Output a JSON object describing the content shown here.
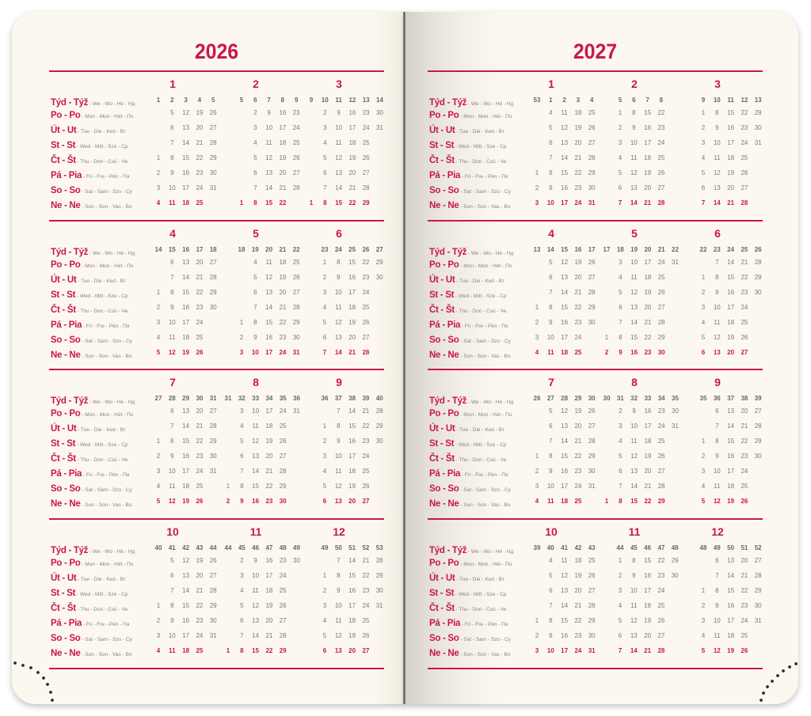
{
  "colors": {
    "accent": "#c8164f",
    "text": "#7d7873",
    "page": "#fcf8ef"
  },
  "row_labels": [
    {
      "main": "Týd - Týž",
      "sub": " - We - Wo - Hé - Нд"
    },
    {
      "main": "Po - Po",
      "sub": " - Mon - Mon - Hét - По"
    },
    {
      "main": "Út - Ut",
      "sub": " - Tue - Die - Ked - Вт"
    },
    {
      "main": "St - St",
      "sub": " - Wed - Mitt - Sze - Ср"
    },
    {
      "main": "Čt - Št",
      "sub": " - Thu - Don - Csü - Че"
    },
    {
      "main": "Pá - Pia",
      "sub": " - Fri - Fre - Pén - Пя"
    },
    {
      "main": "So - So",
      "sub": " - Sat - Sam - Szo - Су"
    },
    {
      "main": "Ne - Ne",
      "sub": " - Sun - Son - Vas - Во"
    }
  ],
  "pages": [
    {
      "year": "2026",
      "quarters": [
        [
          {
            "number": "1",
            "weeks": "1,2,3,4,5",
            "days": [
              ",5,12,19,26",
              ",6,13,20,27",
              ",7,14,21,28",
              "1,8,15,22,29",
              "2,9,16,23,30",
              "3,10,17,24,31",
              "4,11,18,25,"
            ]
          },
          {
            "number": "2",
            "weeks": "5,6,7,8,9",
            "days": [
              ",2,9,16,23",
              ",3,10,17,24",
              ",4,11,18,25",
              ",5,12,19,26",
              ",6,13,20,27",
              ",7,14,21,28",
              "1,8,15,22,"
            ]
          },
          {
            "number": "3",
            "weeks": "9,10,11,12,13,14",
            "days": [
              ",2,9,16,23,30",
              ",3,10,17,24,31",
              ",4,11,18,25,",
              ",5,12,19,26,",
              ",6,13,20,27,",
              ",7,14,21,28,",
              "1,8,15,22,29,"
            ]
          }
        ],
        [
          {
            "number": "4",
            "weeks": "14,15,16,17,18",
            "days": [
              ",6,13,20,27",
              ",7,14,21,28",
              "1,8,15,22,29",
              "2,9,16,23,30",
              "3,10,17,24,",
              "4,11,18,25,",
              "5,12,19,26,"
            ]
          },
          {
            "number": "5",
            "weeks": "18,19,20,21,22",
            "days": [
              ",4,11,18,25",
              ",5,12,19,26",
              ",6,13,20,27",
              ",7,14,21,28",
              "1,8,15,22,29",
              "2,9,16,23,30",
              "3,10,17,24,31"
            ]
          },
          {
            "number": "6",
            "weeks": "23,24,25,26,27",
            "days": [
              "1,8,15,22,29",
              "2,9,16,23,30",
              "3,10,17,24,",
              "4,11,18,25,",
              "5,12,19,26,",
              "6,13,20,27,",
              "7,14,21,28,"
            ]
          }
        ],
        [
          {
            "number": "7",
            "weeks": "27,28,29,30,31",
            "days": [
              ",6,13,20,27",
              ",7,14,21,28",
              "1,8,15,22,29",
              "2,9,16,23,30",
              "3,10,17,24,31",
              "4,11,18,25,",
              "5,12,19,26,"
            ]
          },
          {
            "number": "8",
            "weeks": "31,32,33,34,35,36",
            "days": [
              ",3,10,17,24,31",
              ",4,11,18,25,",
              ",5,12,19,26,",
              ",6,13,20,27,",
              ",7,14,21,28,",
              "1,8,15,22,29,",
              "2,9,16,23,30,"
            ]
          },
          {
            "number": "9",
            "weeks": "36,37,38,39,40",
            "days": [
              ",7,14,21,28",
              "1,8,15,22,29",
              "2,9,16,23,30",
              "3,10,17,24,",
              "4,11,18,25,",
              "5,12,19,26,",
              "6,13,20,27,"
            ]
          }
        ],
        [
          {
            "number": "10",
            "weeks": "40,41,42,43,44",
            "days": [
              ",5,12,19,26",
              ",6,13,20,27",
              ",7,14,21,28",
              "1,8,15,22,29",
              "2,9,16,23,30",
              "3,10,17,24,31",
              "4,11,18,25,"
            ]
          },
          {
            "number": "11",
            "weeks": "44,45,46,47,48,49",
            "days": [
              ",2,9,16,23,30",
              ",3,10,17,24,",
              ",4,11,18,25,",
              ",5,12,19,26,",
              ",6,13,20,27,",
              ",7,14,21,28,",
              "1,8,15,22,29,"
            ]
          },
          {
            "number": "12",
            "weeks": "49,50,51,52,53",
            "days": [
              ",7,14,21,28",
              "1,8,15,22,29",
              "2,9,16,23,30",
              "3,10,17,24,31",
              "4,11,18,25,",
              "5,12,19,26,",
              "6,13,20,27,"
            ]
          }
        ]
      ]
    },
    {
      "year": "2027",
      "quarters": [
        [
          {
            "number": "1",
            "weeks": "53,1,2,3,4",
            "days": [
              ",4,11,18,25",
              ",5,12,19,26",
              ",6,13,20,27",
              ",7,14,21,28",
              "1,8,15,22,29",
              "2,9,16,23,30",
              "3,10,17,24,31"
            ]
          },
          {
            "number": "2",
            "weeks": "5,6,7,8",
            "days": [
              "1,8,15,22",
              "2,9,16,23",
              "3,10,17,24",
              "4,11,18,25",
              "5,12,19,26",
              "6,13,20,27",
              "7,14,21,28"
            ]
          },
          {
            "number": "3",
            "weeks": "9,10,11,12,13",
            "days": [
              "1,8,15,22,29",
              "2,9,16,23,30",
              "3,10,17,24,31",
              "4,11,18,25,",
              "5,12,19,26,",
              "6,13,20,27,",
              "7,14,21,28,"
            ]
          }
        ],
        [
          {
            "number": "4",
            "weeks": "13,14,15,16,17",
            "days": [
              ",5,12,19,26",
              ",6,13,20,27",
              ",7,14,21,28",
              "1,8,15,22,29",
              "2,9,16,23,30",
              "3,10,17,24,",
              "4,11,18,25,"
            ]
          },
          {
            "number": "5",
            "weeks": "17,18,19,20,21,22",
            "days": [
              ",3,10,17,24,31",
              ",4,11,18,25,",
              ",5,12,19,26,",
              ",6,13,20,27,",
              ",7,14,21,28,",
              "1,8,15,22,29,",
              "2,9,16,23,30,"
            ]
          },
          {
            "number": "6",
            "weeks": "22,23,24,25,26",
            "days": [
              ",7,14,21,28",
              "1,8,15,22,29",
              "2,9,16,23,30",
              "3,10,17,24,",
              "4,11,18,25,",
              "5,12,19,26,",
              "6,13,20,27,"
            ]
          }
        ],
        [
          {
            "number": "7",
            "weeks": "26,27,28,29,30",
            "days": [
              ",5,12,19,26",
              ",6,13,20,27",
              ",7,14,21,28",
              "1,8,15,22,29",
              "2,9,16,23,30",
              "3,10,17,24,31",
              "4,11,18,25,"
            ]
          },
          {
            "number": "8",
            "weeks": "30,31,32,33,34,35",
            "days": [
              ",2,9,16,23,30",
              ",3,10,17,24,31",
              ",4,11,18,25,",
              ",5,12,19,26,",
              ",6,13,20,27,",
              ",7,14,21,28,",
              "1,8,15,22,29,"
            ]
          },
          {
            "number": "9",
            "weeks": "35,36,37,38,39",
            "days": [
              ",6,13,20,27",
              ",7,14,21,28",
              "1,8,15,22,29",
              "2,9,16,23,30",
              "3,10,17,24,",
              "4,11,18,25,",
              "5,12,19,26,"
            ]
          }
        ],
        [
          {
            "number": "10",
            "weeks": "39,40,41,42,43",
            "days": [
              ",4,11,18,25",
              ",5,12,19,26",
              ",6,13,20,27",
              ",7,14,21,28",
              "1,8,15,22,29",
              "2,9,16,23,30",
              "3,10,17,24,31"
            ]
          },
          {
            "number": "11",
            "weeks": "44,45,46,47,48",
            "days": [
              "1,8,15,22,29",
              "2,9,16,23,30",
              "3,10,17,24,",
              "4,11,18,25,",
              "5,12,19,26,",
              "6,13,20,27,",
              "7,14,21,28,"
            ]
          },
          {
            "number": "12",
            "weeks": "48,49,50,51,52",
            "days": [
              ",6,13,20,27",
              ",7,14,21,28",
              "1,8,15,22,29",
              "2,9,16,23,30",
              "3,10,17,24,31",
              "4,11,18,25,",
              "5,12,19,26,"
            ]
          }
        ]
      ]
    }
  ]
}
